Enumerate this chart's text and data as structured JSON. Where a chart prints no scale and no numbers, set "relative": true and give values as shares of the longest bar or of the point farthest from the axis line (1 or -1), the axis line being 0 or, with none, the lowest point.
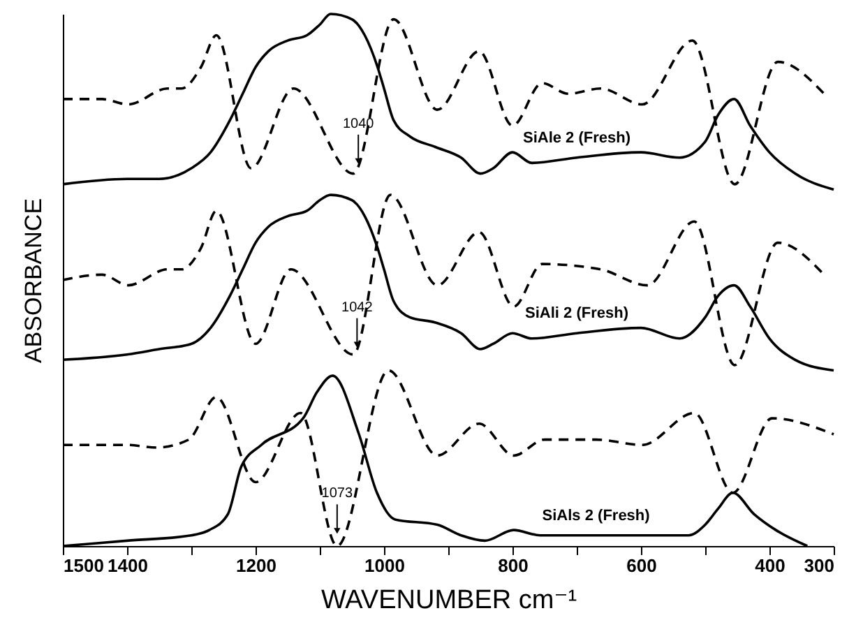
{
  "chart_data": {
    "type": "line",
    "relative": true,
    "xlabel": "WAVENUMBER   cm⁻¹",
    "ylabel": "ABSORBANCE",
    "xlim": [
      1500,
      300
    ],
    "xticks": [
      1500,
      1400,
      {
        "value": 1300,
        "label": null
      },
      1200,
      {
        "value": 1100,
        "label": null
      },
      1000,
      {
        "value": 900,
        "label": null
      },
      800,
      {
        "value": 700,
        "label": null
      },
      600,
      {
        "value": 500,
        "label": null
      },
      400,
      300
    ],
    "grid": false,
    "marker": "none",
    "annotations": [
      {
        "text": "1040",
        "x": 1040,
        "y": 0.705
      },
      {
        "text": "1042",
        "x": 1042,
        "y": 0.36
      },
      {
        "text": "1073",
        "x": 1073,
        "y": 0.01
      }
    ],
    "series": [
      {
        "name": "SiAle 2 (Fresh)",
        "color": "#000000",
        "line_style": "solid",
        "x": [
          1500,
          1400,
          1350,
          1300,
          1270,
          1240,
          1220,
          1200,
          1180,
          1150,
          1120,
          1100,
          1083,
          1050,
          1030,
          1010,
          1000,
          985,
          960,
          920,
          880,
          850,
          830,
          800,
          770,
          700,
          600,
          540,
          500,
          480,
          455,
          430,
          400,
          360,
          300
        ],
        "values": [
          0.68,
          0.69,
          0.69,
          0.71,
          0.74,
          0.8,
          0.85,
          0.9,
          0.93,
          0.95,
          0.96,
          0.98,
          1.0,
          0.99,
          0.96,
          0.9,
          0.86,
          0.8,
          0.77,
          0.75,
          0.73,
          0.7,
          0.71,
          0.74,
          0.72,
          0.73,
          0.74,
          0.73,
          0.76,
          0.81,
          0.84,
          0.79,
          0.74,
          0.7,
          0.67
        ]
      },
      {
        "color": "#000000",
        "line_style": "dashed",
        "x": [
          1500,
          1439,
          1398,
          1337,
          1315,
          1285,
          1261,
          1207,
          1141,
          1048,
          985,
          917,
          852,
          800,
          754,
          713,
          663,
          598,
          520,
          454,
          387,
          315
        ],
        "values": [
          0.84,
          0.84,
          0.83,
          0.86,
          0.86,
          0.9,
          0.96,
          0.71,
          0.86,
          0.7,
          0.99,
          0.82,
          0.93,
          0.79,
          0.87,
          0.85,
          0.86,
          0.83,
          0.95,
          0.68,
          0.91,
          0.85
        ]
      },
      {
        "name": "SiAli 2 (Fresh)",
        "color": "#000000",
        "line_style": "solid",
        "x": [
          1500,
          1400,
          1350,
          1300,
          1270,
          1240,
          1220,
          1200,
          1180,
          1150,
          1120,
          1100,
          1083,
          1050,
          1030,
          1010,
          1000,
          985,
          960,
          920,
          880,
          850,
          830,
          800,
          770,
          700,
          600,
          540,
          500,
          480,
          455,
          430,
          400,
          360,
          300
        ],
        "values": [
          0.35,
          0.36,
          0.37,
          0.38,
          0.41,
          0.47,
          0.52,
          0.57,
          0.6,
          0.62,
          0.63,
          0.65,
          0.66,
          0.65,
          0.62,
          0.56,
          0.52,
          0.46,
          0.43,
          0.42,
          0.4,
          0.37,
          0.38,
          0.4,
          0.39,
          0.4,
          0.41,
          0.39,
          0.43,
          0.47,
          0.49,
          0.45,
          0.39,
          0.35,
          0.33
        ]
      },
      {
        "color": "#000000",
        "line_style": "dashed",
        "x": [
          1500,
          1439,
          1398,
          1337,
          1315,
          1285,
          1261,
          1200,
          1145,
          1048,
          990,
          917,
          852,
          798,
          754,
          663,
          590,
          517,
          454,
          387,
          315
        ],
        "values": [
          0.5,
          0.51,
          0.49,
          0.52,
          0.52,
          0.56,
          0.63,
          0.38,
          0.52,
          0.36,
          0.66,
          0.49,
          0.59,
          0.45,
          0.53,
          0.52,
          0.49,
          0.61,
          0.34,
          0.57,
          0.51
        ]
      },
      {
        "name": "SiAls 2 (Fresh)",
        "color": "#000000",
        "line_style": "solid",
        "x": [
          1500,
          1400,
          1300,
          1272,
          1243,
          1222,
          1191,
          1126,
          1104,
          1080,
          1039,
          1011,
          983,
          917,
          880,
          843,
          798,
          757,
          670,
          570,
          526,
          500,
          480,
          457,
          424,
          390,
          341
        ],
        "values": [
          0.0,
          0.01,
          0.02,
          0.03,
          0.06,
          0.15,
          0.19,
          0.24,
          0.29,
          0.32,
          0.21,
          0.1,
          0.05,
          0.04,
          0.02,
          0.01,
          0.03,
          0.02,
          0.02,
          0.02,
          0.02,
          0.04,
          0.07,
          0.1,
          0.06,
          0.03,
          0.0
        ]
      },
      {
        "color": "#000000",
        "line_style": "dashed",
        "x": [
          1500,
          1400,
          1354,
          1304,
          1261,
          1200,
          1130,
          1073,
          993,
          917,
          852,
          798,
          750,
          670,
          598,
          517,
          457,
          396,
          300
        ],
        "values": [
          0.19,
          0.19,
          0.185,
          0.2,
          0.28,
          0.12,
          0.25,
          0.0,
          0.33,
          0.17,
          0.23,
          0.17,
          0.2,
          0.2,
          0.19,
          0.25,
          0.1,
          0.24,
          0.21
        ]
      }
    ]
  }
}
